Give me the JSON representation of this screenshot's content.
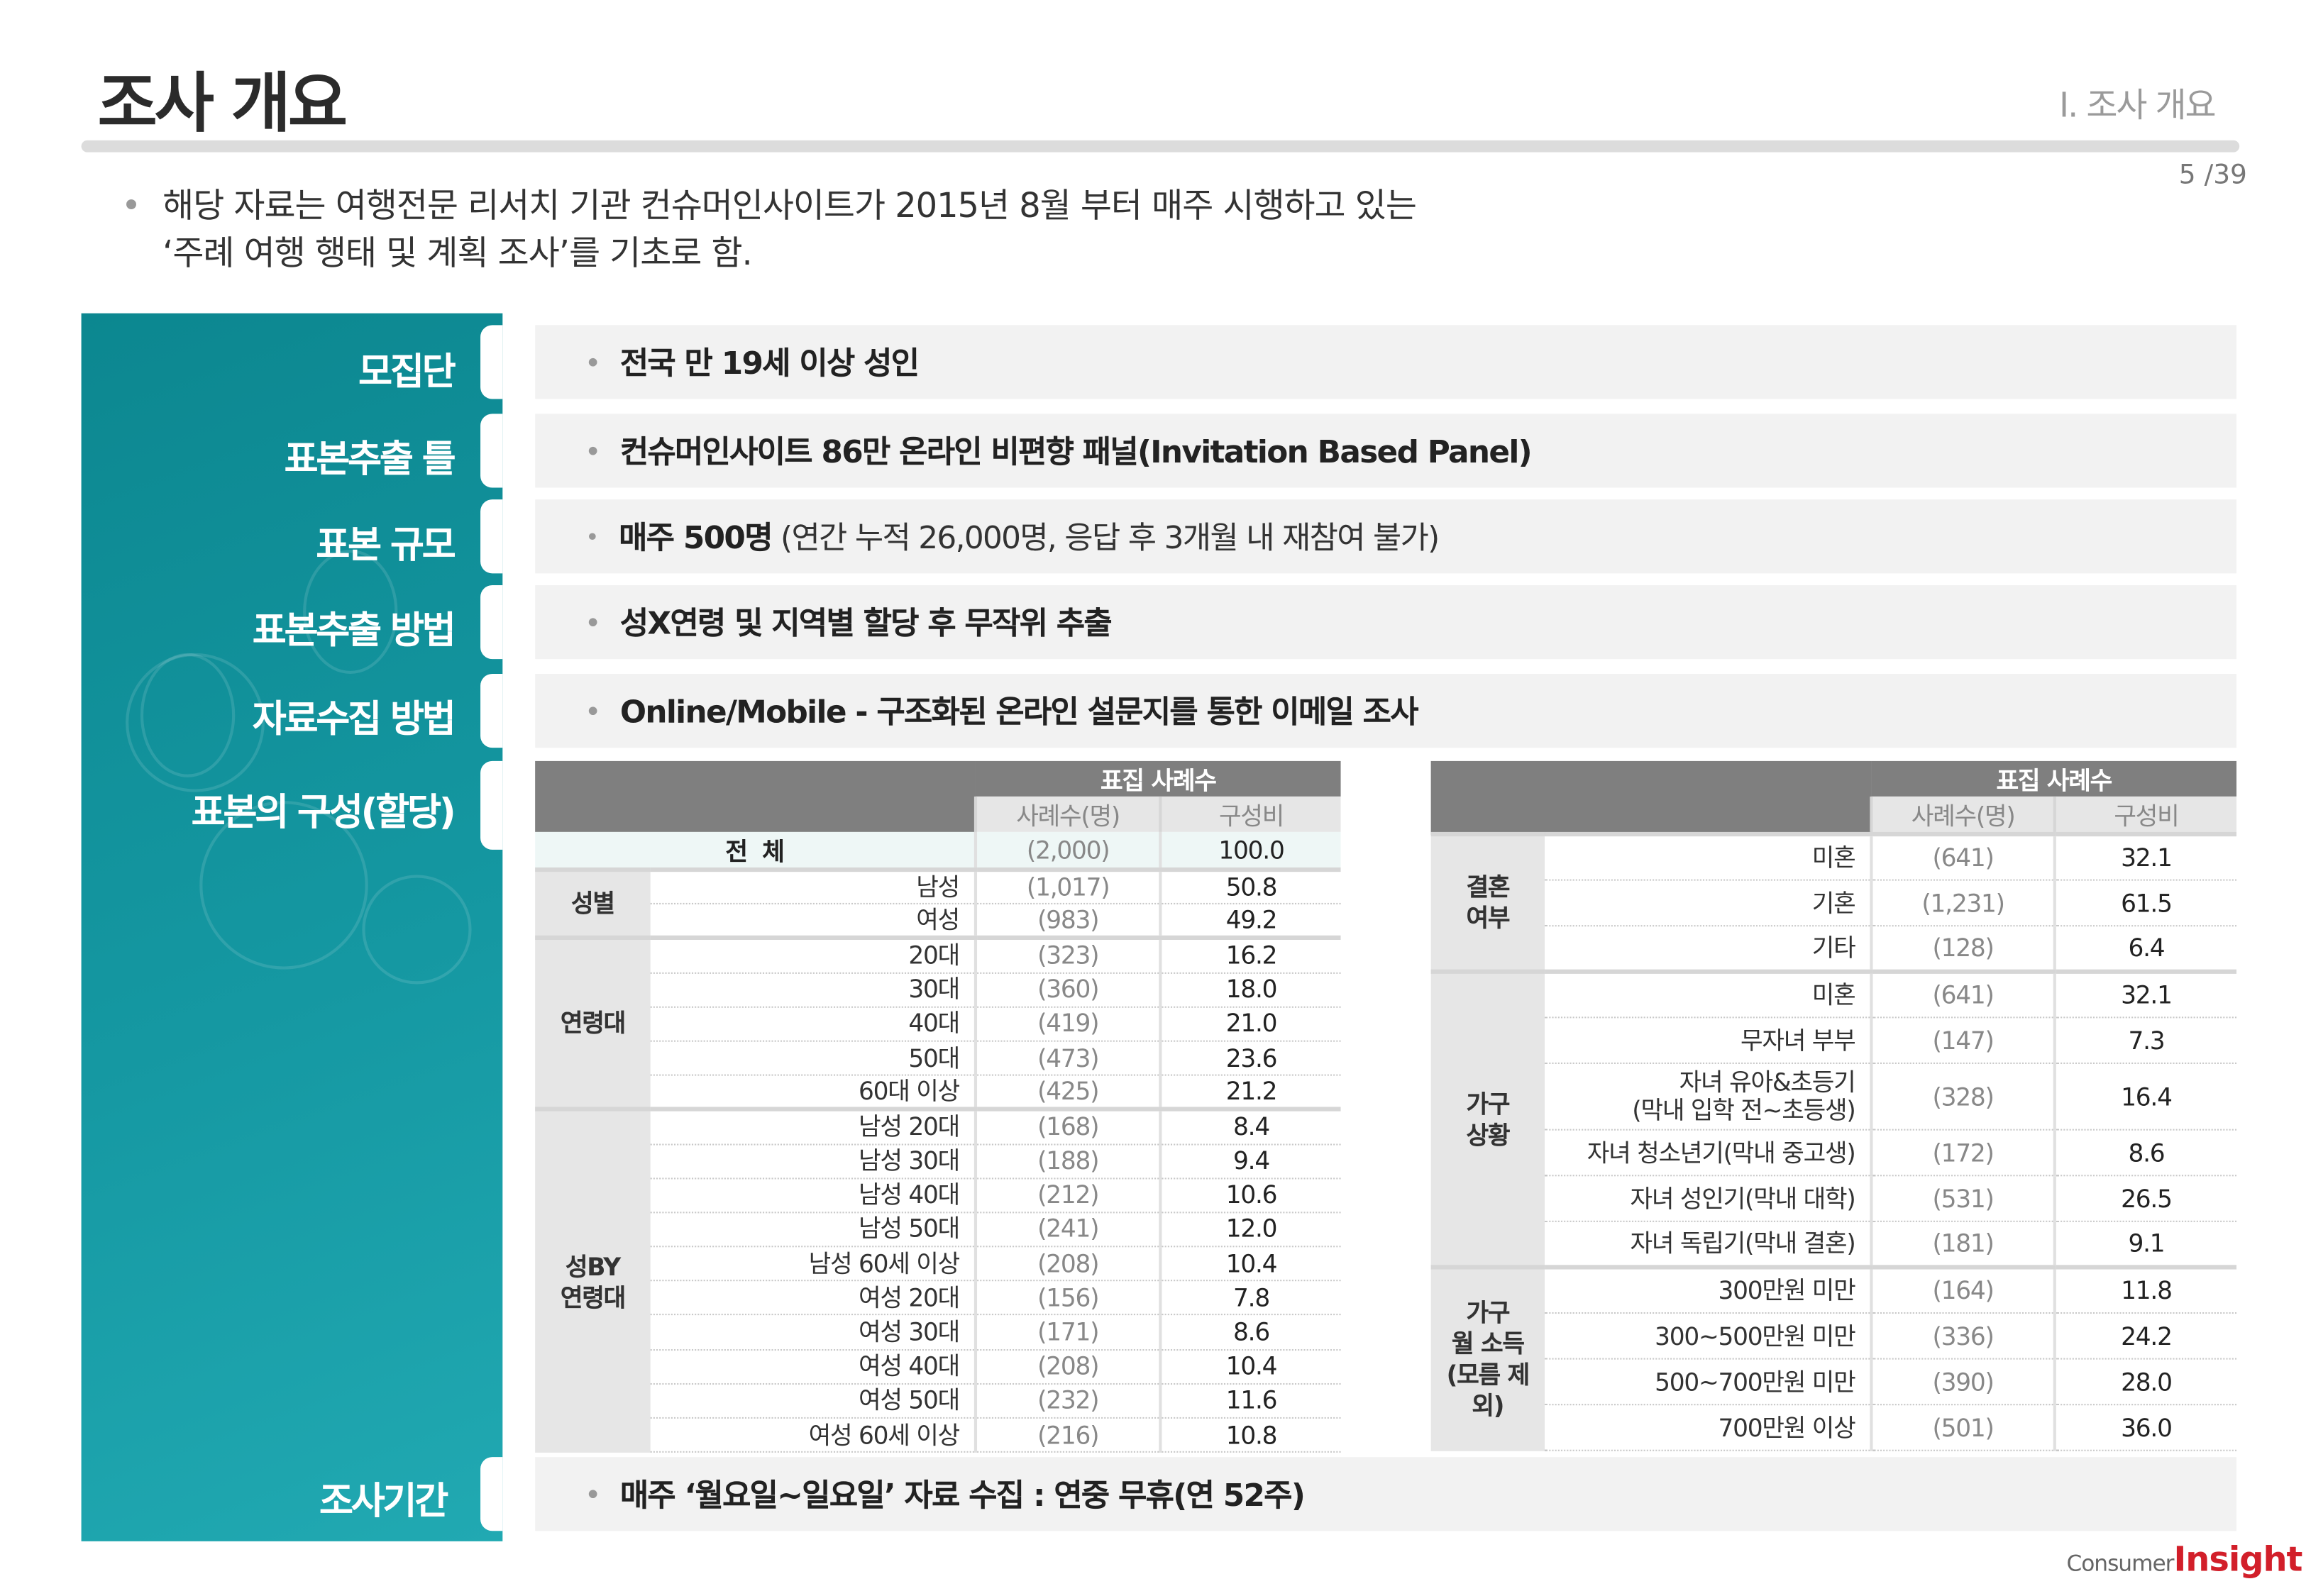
{
  "header": {
    "title": "조사 개요",
    "section": "Ⅰ. 조사 개요",
    "page": "5 /39"
  },
  "intro": {
    "line1": "해당 자료는 여행전문 리서치 기관 컨슈머인사이트가 2015년 8월 부터 매주 시행하고 있는",
    "line2": "‘주례 여행 행태 및 계획 조사’를 기초로 함."
  },
  "sidebar": {
    "items": [
      {
        "label": "모집단"
      },
      {
        "label": "표본추출 틀"
      },
      {
        "label": "표본 규모"
      },
      {
        "label": "표본추출 방법"
      },
      {
        "label": "자료수집 방법"
      },
      {
        "label": "표본의 구성(할당)"
      },
      {
        "label": "조사기간"
      }
    ],
    "color": "#11909A"
  },
  "rows": {
    "population": "전국 만 19세 이상 성인",
    "frame": "컨슈머인사이트 86만 온라인 비편향 패널(Invitation Based Panel)",
    "size_bold": "매주 500명",
    "size_rest": " (연간 누적 26,000명, 응답 후 3개월 내 재참여 불가)",
    "method": "성X연령 및 지역별 할당 후 무작위 추출",
    "collection": "Online/Mobile - 구조화된 온라인 설문지를 통한 이메일 조사",
    "period": "매주 ‘월요일~일요일’ 자료 수집 : 연중 무휴(연 52주)"
  },
  "left_table": {
    "header": "표집 사례수",
    "col_count": "사례수(명)",
    "col_ratio": "구성비",
    "total": {
      "label": "전  체",
      "count": "(2,000)",
      "ratio": "100.0"
    },
    "groups": [
      {
        "label": "성별",
        "rows": [
          {
            "item": "남성",
            "count": "(1,017)",
            "ratio": "50.8"
          },
          {
            "item": "여성",
            "count": "(983)",
            "ratio": "49.2"
          }
        ]
      },
      {
        "label": "연령대",
        "rows": [
          {
            "item": "20대",
            "count": "(323)",
            "ratio": "16.2"
          },
          {
            "item": "30대",
            "count": "(360)",
            "ratio": "18.0"
          },
          {
            "item": "40대",
            "count": "(419)",
            "ratio": "21.0"
          },
          {
            "item": "50대",
            "count": "(473)",
            "ratio": "23.6"
          },
          {
            "item": "60대 이상",
            "count": "(425)",
            "ratio": "21.2"
          }
        ]
      },
      {
        "label": "성BY\n연령대",
        "rows": [
          {
            "item": "남성 20대",
            "count": "(168)",
            "ratio": "8.4"
          },
          {
            "item": "남성 30대",
            "count": "(188)",
            "ratio": "9.4"
          },
          {
            "item": "남성 40대",
            "count": "(212)",
            "ratio": "10.6"
          },
          {
            "item": "남성 50대",
            "count": "(241)",
            "ratio": "12.0"
          },
          {
            "item": "남성 60세 이상",
            "count": "(208)",
            "ratio": "10.4"
          },
          {
            "item": "여성 20대",
            "count": "(156)",
            "ratio": "7.8"
          },
          {
            "item": "여성 30대",
            "count": "(171)",
            "ratio": "8.6"
          },
          {
            "item": "여성 40대",
            "count": "(208)",
            "ratio": "10.4"
          },
          {
            "item": "여성 50대",
            "count": "(232)",
            "ratio": "11.6"
          },
          {
            "item": "여성 60세 이상",
            "count": "(216)",
            "ratio": "10.8"
          }
        ]
      }
    ]
  },
  "right_table": {
    "header": "표집 사례수",
    "col_count": "사례수(명)",
    "col_ratio": "구성비",
    "groups": [
      {
        "label": "결혼\n여부",
        "rows": [
          {
            "item": "미혼",
            "count": "(641)",
            "ratio": "32.1"
          },
          {
            "item": "기혼",
            "count": "(1,231)",
            "ratio": "61.5"
          },
          {
            "item": "기타",
            "count": "(128)",
            "ratio": "6.4"
          }
        ]
      },
      {
        "label": "가구\n상황",
        "rows": [
          {
            "item": "미혼",
            "count": "(641)",
            "ratio": "32.1"
          },
          {
            "item": "무자녀 부부",
            "count": "(147)",
            "ratio": "7.3"
          },
          {
            "item": "자녀 유아&초등기\n(막내 입학 전~초등생)",
            "count": "(328)",
            "ratio": "16.4"
          },
          {
            "item": "자녀 청소년기(막내 중고생)",
            "count": "(172)",
            "ratio": "8.6"
          },
          {
            "item": "자녀 성인기(막내 대학)",
            "count": "(531)",
            "ratio": "26.5"
          },
          {
            "item": "자녀 독립기(막내 결혼)",
            "count": "(181)",
            "ratio": "9.1"
          }
        ]
      },
      {
        "label": "가구\n월 소득\n(모름 제외)",
        "rows": [
          {
            "item": "300만원 미만",
            "count": "(164)",
            "ratio": "11.8"
          },
          {
            "item": "300~500만원 미만",
            "count": "(336)",
            "ratio": "24.2"
          },
          {
            "item": "500~700만원 미만",
            "count": "(390)",
            "ratio": "28.0"
          },
          {
            "item": "700만원 이상",
            "count": "(501)",
            "ratio": "36.0"
          }
        ]
      }
    ]
  },
  "logo": {
    "text1": "Consumer",
    "text2": "Insight",
    "brand_color": "#D21F2A"
  }
}
